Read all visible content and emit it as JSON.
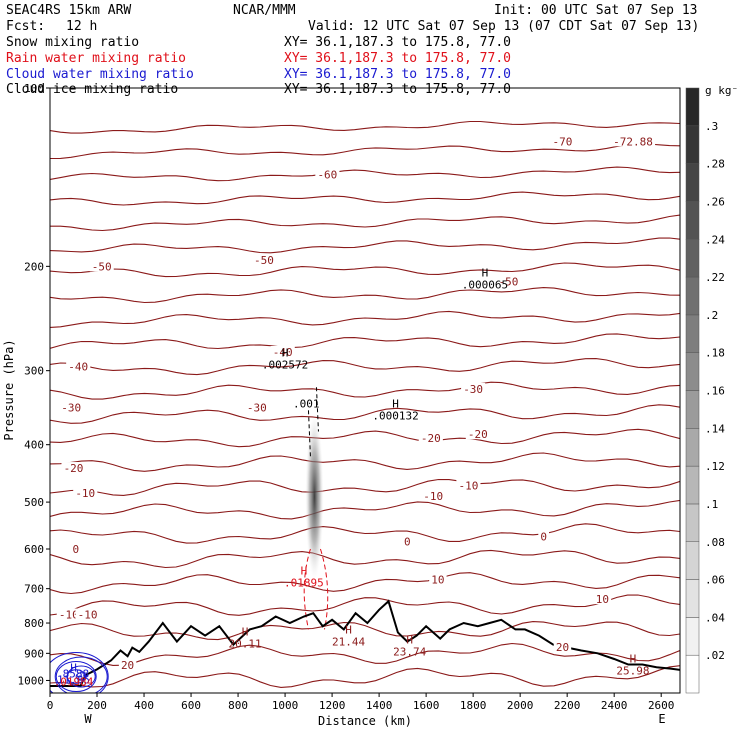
{
  "header": {
    "model": "SEAC4RS 15km ARW",
    "org": "NCAR/MMM",
    "init": "Init: 00 UTC Sat 07 Sep 13",
    "fcst_label": "Fcst:",
    "fcst_value": "12 h",
    "valid": "Valid: 12 UTC Sat 07 Sep 13 (07 CDT Sat 07 Sep 13)",
    "fields": [
      {
        "name": "Snow mixing ratio",
        "xy": "XY=  36.1,187.3 to 175.8, 77.0",
        "color": "#000000"
      },
      {
        "name": "Rain water mixing ratio",
        "xy": "XY=  36.1,187.3 to 175.8, 77.0",
        "color": "#e0101a"
      },
      {
        "name": "Cloud water mixing ratio",
        "xy": "XY=  36.1,187.3 to 175.8, 77.0",
        "color": "#1a1ad0"
      },
      {
        "name": "Cloud ice mixing ratio",
        "xy": "XY=  36.1,187.3 to 175.8, 77.0",
        "color": "#000000"
      }
    ]
  },
  "chart_data": {
    "type": "contour cross-section",
    "xlabel": "Distance (km)",
    "ylabel": "Pressure (hPa)",
    "xlim": [
      0,
      2680
    ],
    "ylim": [
      1050,
      100
    ],
    "y_scale": "log",
    "x_ticks": [
      0,
      200,
      400,
      600,
      800,
      1000,
      1200,
      1400,
      1600,
      1800,
      2000,
      2200,
      2400,
      2600
    ],
    "y_ticks": [
      100,
      200,
      300,
      400,
      500,
      600,
      700,
      800,
      900,
      1000
    ],
    "y_tick_labels": [
      "100",
      "200",
      "300",
      "400",
      "500",
      "600",
      "700",
      "800",
      "900",
      "1000"
    ],
    "x_end_labels": {
      "left": "W",
      "right": "E"
    },
    "shading": {
      "field": "Cloud ice mixing ratio",
      "units": "g kg⁻¹",
      "levels": [
        0.02,
        0.04,
        0.06,
        0.08,
        0.1,
        0.12,
        0.14,
        0.16,
        0.18,
        0.2,
        0.22,
        0.24,
        0.26,
        0.28,
        0.3
      ],
      "level_labels": [
        ".02",
        ".04",
        ".06",
        ".08",
        ".1",
        ".12",
        ".14",
        ".16",
        ".18",
        ".2",
        ".22",
        ".24",
        ".26",
        ".28",
        ".3"
      ],
      "plume": {
        "x": 1125,
        "p_top": 400,
        "p_bottom": 600,
        "p_peak": 500
      }
    },
    "temperature_contours": {
      "interval": 10,
      "color": "#8b1a1a",
      "labels": [
        {
          "text": "-70",
          "x": 2180,
          "p": 123
        },
        {
          "text": "-72.88",
          "x": 2480,
          "p": 123
        },
        {
          "text": "-60",
          "x": 1180,
          "p": 140
        },
        {
          "text": "-50",
          "x": 220,
          "p": 200
        },
        {
          "text": "-50",
          "x": 910,
          "p": 195
        },
        {
          "text": "-50",
          "x": 1950,
          "p": 212
        },
        {
          "text": "-40",
          "x": 120,
          "p": 295
        },
        {
          "text": "-40",
          "x": 990,
          "p": 279
        },
        {
          "text": "-30",
          "x": 90,
          "p": 346
        },
        {
          "text": "-30",
          "x": 880,
          "p": 346
        },
        {
          "text": "-30",
          "x": 1800,
          "p": 322
        },
        {
          "text": "-20",
          "x": 100,
          "p": 438
        },
        {
          "text": "-20",
          "x": 1620,
          "p": 390
        },
        {
          "text": "-20",
          "x": 1820,
          "p": 384
        },
        {
          "text": "-10",
          "x": 150,
          "p": 483
        },
        {
          "text": "-10",
          "x": 1630,
          "p": 488
        },
        {
          "text": "-10",
          "x": 1780,
          "p": 469
        },
        {
          "text": "0",
          "x": 110,
          "p": 600
        },
        {
          "text": "0",
          "x": 1520,
          "p": 583
        },
        {
          "text": "0",
          "x": 2100,
          "p": 571
        },
        {
          "text": "10",
          "x": 1650,
          "p": 675
        },
        {
          "text": "10",
          "x": 2350,
          "p": 729
        },
        {
          "text": "-10",
          "x": 80,
          "p": 774
        },
        {
          "text": "-10",
          "x": 160,
          "p": 774
        },
        {
          "text": "20",
          "x": 2180,
          "p": 878
        },
        {
          "text": "20",
          "x": 330,
          "p": 942
        }
      ]
    },
    "extrema": [
      {
        "mark": "H",
        "value": ".000065",
        "x": 1850,
        "p": 208,
        "color": "#000000"
      },
      {
        "mark": "H",
        "value": ".002572",
        "x": 1000,
        "p": 284,
        "color": "#000000"
      },
      {
        "mark": ".001",
        "value": "",
        "x": 1090,
        "p": 346,
        "color": "#000000"
      },
      {
        "mark": "H",
        "value": ".000132",
        "x": 1470,
        "p": 346,
        "color": "#000000"
      },
      {
        "mark": "H",
        "value": ".01895",
        "x": 1080,
        "p": 662,
        "color": "#e0101a"
      },
      {
        "mark": "H",
        "value": "20.11",
        "x": 830,
        "p": 839,
        "color": "#8b1a1a"
      },
      {
        "mark": "H",
        "value": "21.44",
        "x": 1270,
        "p": 833,
        "color": "#8b1a1a"
      },
      {
        "mark": "H",
        "value": "23.74",
        "x": 1530,
        "p": 866,
        "color": "#8b1a1a"
      },
      {
        "mark": "H",
        "value": "25.98",
        "x": 2480,
        "p": 933,
        "color": "#8b1a1a"
      },
      {
        "mark": "H",
        "value": "11.85",
        "x": 100,
        "p": 966,
        "color": "#1a1ad0"
      },
      {
        "mark": "",
        "value": "8588",
        "x": 110,
        "p": 989,
        "color": "#1a1ad0"
      },
      {
        "mark": "",
        "value": ".01984",
        "x": 100,
        "p": 1019,
        "color": "#e0101a"
      }
    ],
    "terrain": {
      "color": "#000000",
      "points": [
        [
          0,
          1022
        ],
        [
          130,
          1022
        ],
        [
          150,
          980
        ],
        [
          200,
          958
        ],
        [
          260,
          925
        ],
        [
          300,
          890
        ],
        [
          330,
          910
        ],
        [
          350,
          880
        ],
        [
          380,
          895
        ],
        [
          420,
          860
        ],
        [
          480,
          800
        ],
        [
          540,
          860
        ],
        [
          600,
          810
        ],
        [
          660,
          840
        ],
        [
          720,
          810
        ],
        [
          780,
          870
        ],
        [
          850,
          820
        ],
        [
          900,
          810
        ],
        [
          960,
          780
        ],
        [
          1020,
          800
        ],
        [
          1080,
          780
        ],
        [
          1120,
          770
        ],
        [
          1160,
          810
        ],
        [
          1200,
          790
        ],
        [
          1250,
          820
        ],
        [
          1300,
          770
        ],
        [
          1350,
          800
        ],
        [
          1400,
          760
        ],
        [
          1440,
          735
        ],
        [
          1480,
          830
        ],
        [
          1520,
          860
        ],
        [
          1560,
          840
        ],
        [
          1600,
          810
        ],
        [
          1660,
          850
        ],
        [
          1700,
          820
        ],
        [
          1760,
          800
        ],
        [
          1820,
          810
        ],
        [
          1870,
          800
        ],
        [
          1920,
          790
        ],
        [
          1980,
          820
        ],
        [
          2020,
          820
        ],
        [
          2080,
          840
        ],
        [
          2140,
          870
        ],
        [
          2200,
          880
        ],
        [
          2260,
          890
        ],
        [
          2330,
          900
        ],
        [
          2400,
          920
        ],
        [
          2460,
          940
        ],
        [
          2520,
          940
        ],
        [
          2580,
          950
        ],
        [
          2640,
          955
        ],
        [
          2680,
          960
        ]
      ]
    }
  }
}
